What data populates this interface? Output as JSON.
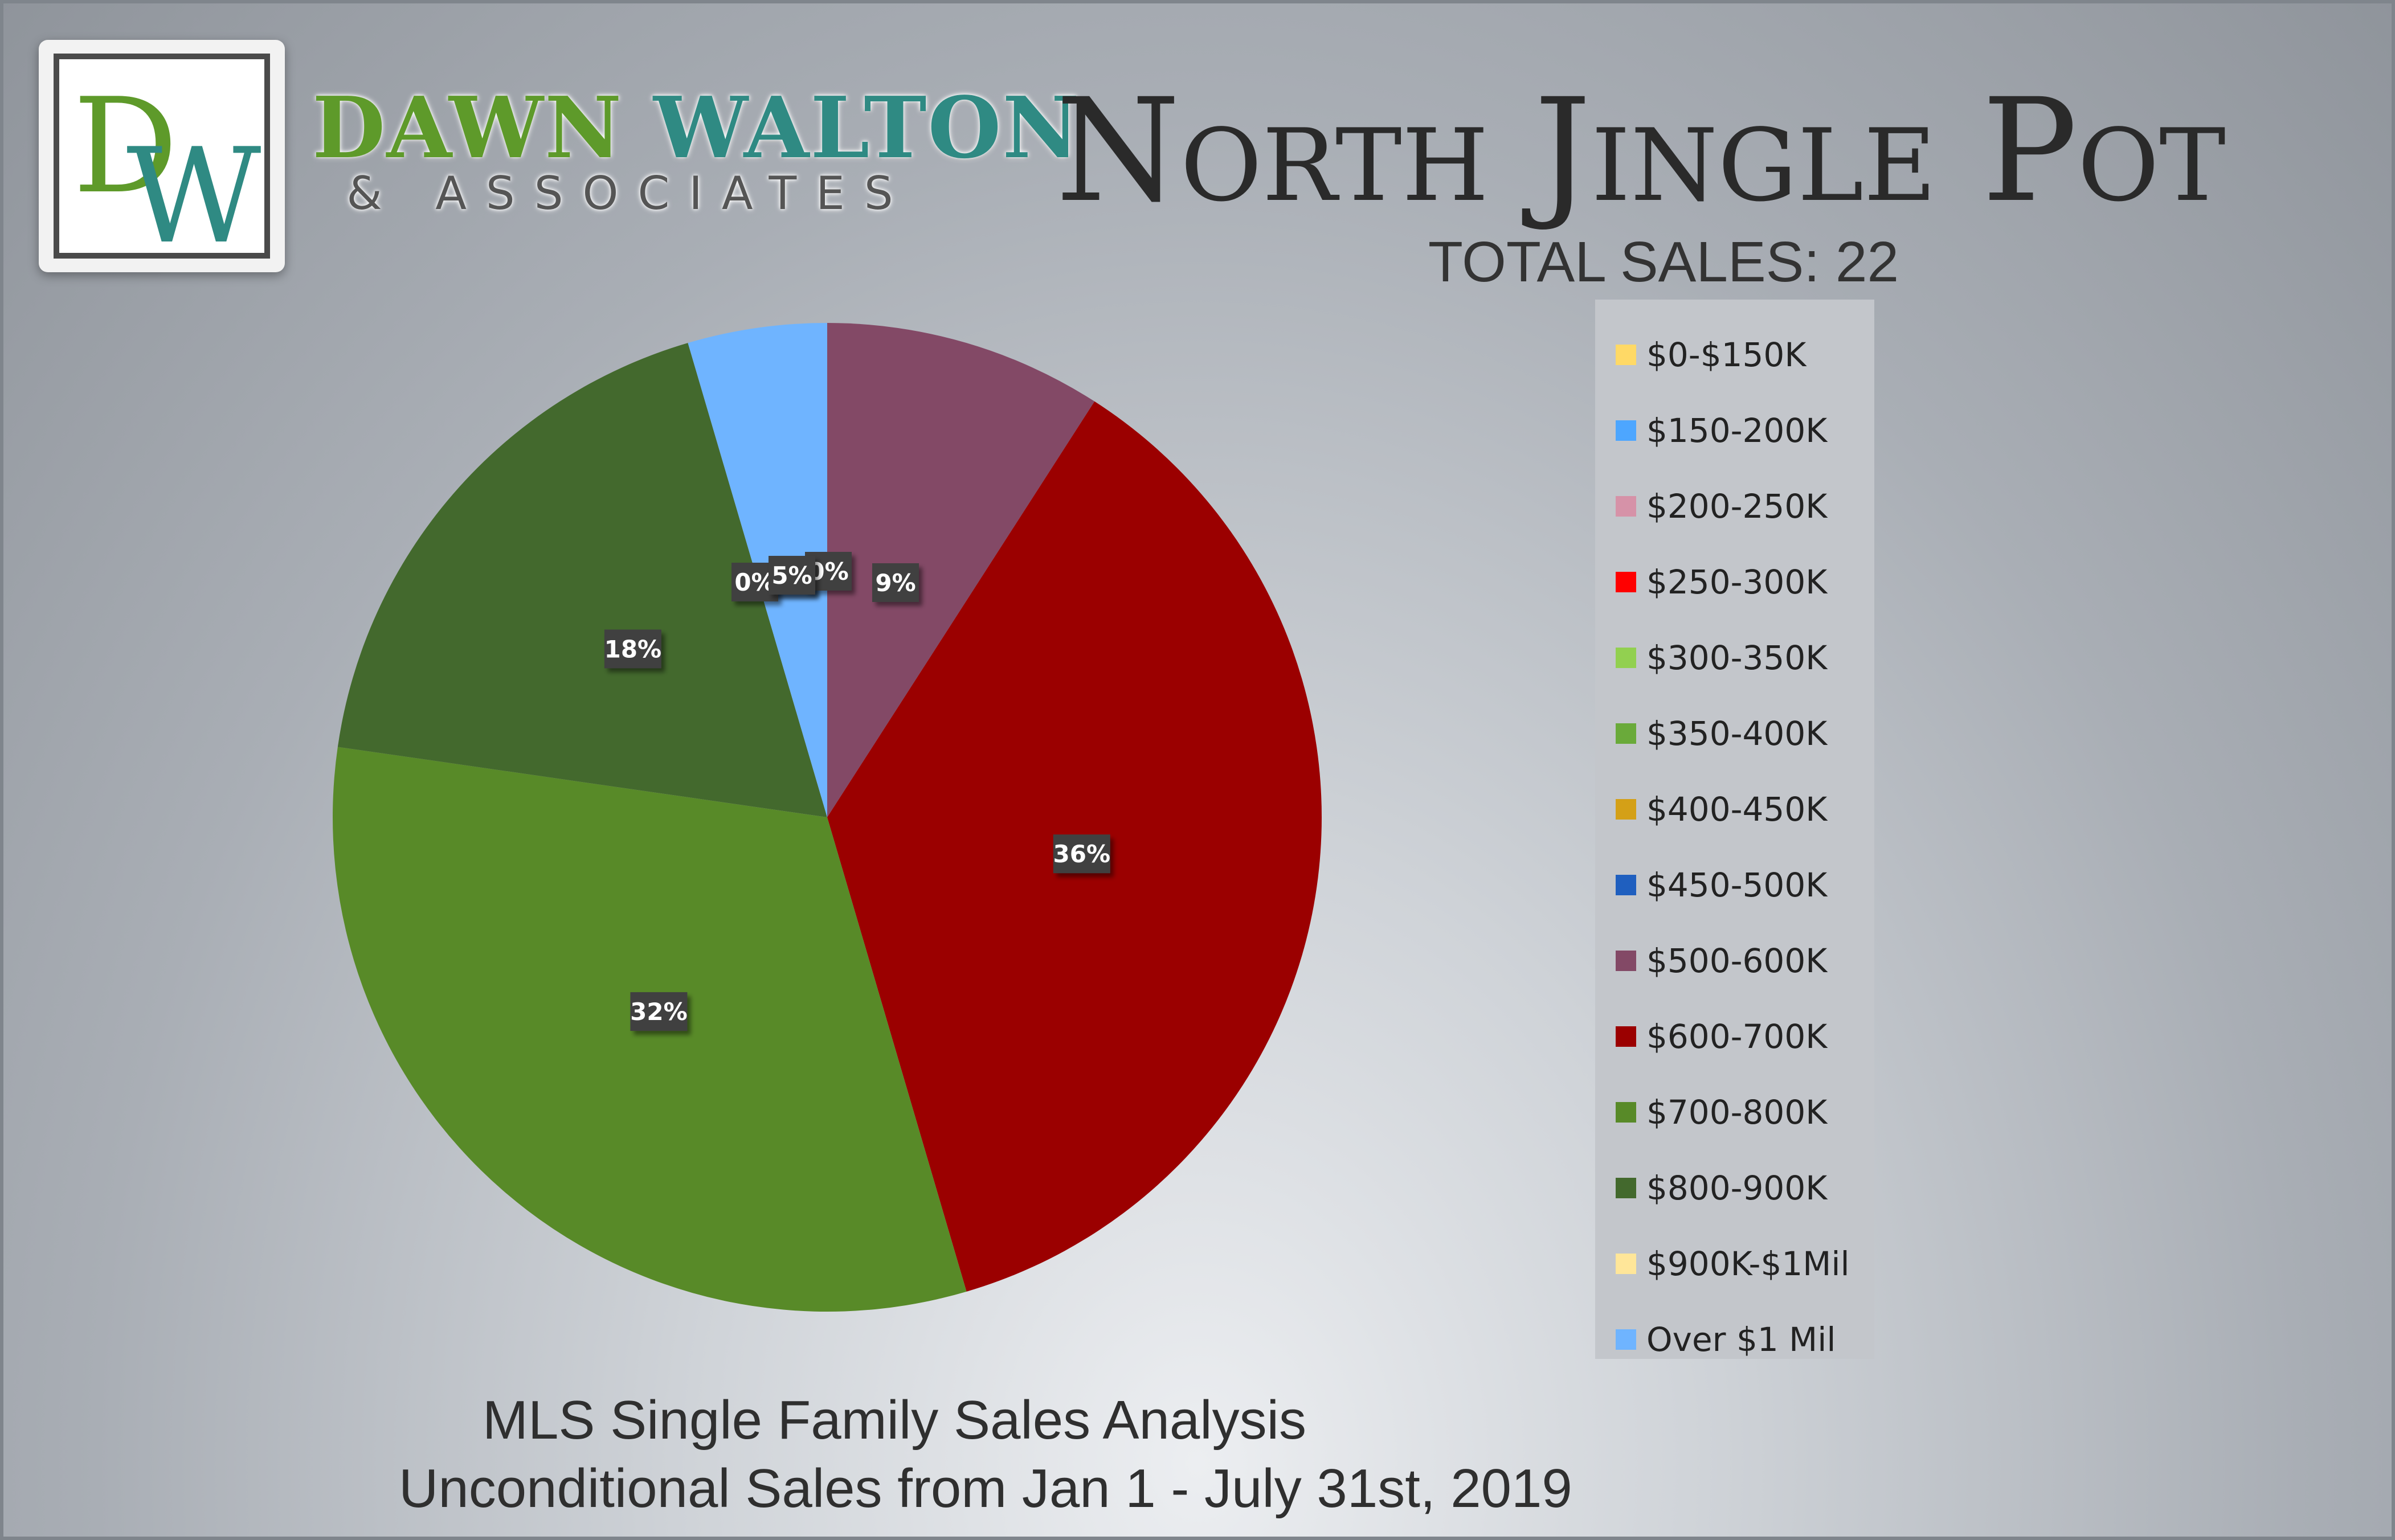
{
  "brand": {
    "monogram_d": "D",
    "monogram_w": "W",
    "name_part1": "DAWN ",
    "name_part2": "WALTON",
    "subtitle": "& ASSOCIATES",
    "colors": {
      "green": "#5e9a2a",
      "teal": "#2f8a83"
    }
  },
  "header": {
    "title": "North Jingle Pot",
    "total_sales": "TOTAL SALES: 22"
  },
  "footer": {
    "line1": "MLS Single Family Sales Analysis",
    "line2": "Unconditional Sales from Jan 1 - July 31st, 2019"
  },
  "chart_data": {
    "type": "pie",
    "title": "North Jingle Pot",
    "total": 22,
    "legend_position": "right",
    "slices": [
      {
        "label": "$0-$150K",
        "value": 0,
        "percent_label": "",
        "color": "#ffd966"
      },
      {
        "label": "$150-200K",
        "value": 0,
        "percent_label": "",
        "color": "#4da6ff"
      },
      {
        "label": "$200-250K",
        "value": 0,
        "percent_label": "",
        "color": "#d692a8"
      },
      {
        "label": "$250-300K",
        "value": 0,
        "percent_label": "",
        "color": "#ff0000"
      },
      {
        "label": "$300-350K",
        "value": 0,
        "percent_label": "",
        "color": "#92d050"
      },
      {
        "label": "$350-400K",
        "value": 0,
        "percent_label": "",
        "color": "#6aaa3a"
      },
      {
        "label": "$400-450K",
        "value": 0,
        "percent_label": "",
        "color": "#d4a017"
      },
      {
        "label": "$450-500K",
        "value": 0,
        "percent_label": "",
        "color": "#1f5fbf"
      },
      {
        "label": "$500-600K",
        "value": 2,
        "percent_label": "9%",
        "color": "#834966"
      },
      {
        "label": "$600-700K",
        "value": 8,
        "percent_label": "36%",
        "color": "#9b0000"
      },
      {
        "label": "$700-800K",
        "value": 7,
        "percent_label": "32%",
        "color": "#588a28"
      },
      {
        "label": "$800-900K",
        "value": 4,
        "percent_label": "18%",
        "color": "#43692d"
      },
      {
        "label": "$900K-$1Mil",
        "value": 0,
        "percent_label": "0%",
        "color": "#ffe699"
      },
      {
        "label": "Over $1 Mil",
        "value": 1,
        "percent_label": "5%",
        "color": "#6fb4ff"
      }
    ],
    "overlapping_zero_label": "0%"
  }
}
